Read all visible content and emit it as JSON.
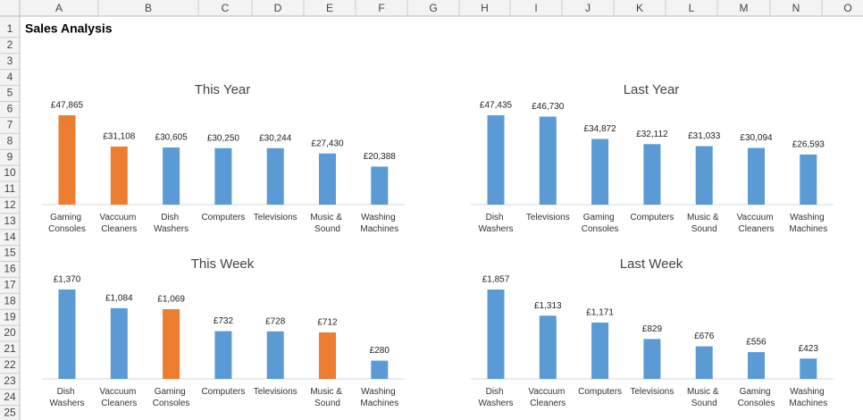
{
  "spreadsheet": {
    "columns": [
      "A",
      "B",
      "C",
      "D",
      "E",
      "F",
      "G",
      "H",
      "I",
      "J",
      "K",
      "L",
      "M",
      "N",
      "O"
    ],
    "rows": [
      1,
      2,
      3,
      4,
      5,
      6,
      7,
      8,
      9,
      10,
      11,
      12,
      13,
      14,
      15,
      16,
      17,
      18,
      19,
      20,
      21,
      22,
      23,
      24,
      25
    ],
    "title": "Sales Analysis"
  },
  "chart_data": [
    {
      "type": "bar",
      "title": "This Year",
      "categories": [
        "Gaming Consoles",
        "Vaccuum Cleaners",
        "Dish Washers",
        "Computers",
        "Televisions",
        "Music & Sound",
        "Washing Machines"
      ],
      "values": [
        47865,
        31108,
        30605,
        30250,
        30244,
        27430,
        20388
      ],
      "value_labels": [
        "£47,865",
        "£31,108",
        "£30,605",
        "£30,250",
        "£30,244",
        "£27,430",
        "£20,388"
      ],
      "colors": [
        "#ed7d31",
        "#ed7d31",
        "#5b9bd5",
        "#5b9bd5",
        "#5b9bd5",
        "#5b9bd5",
        "#5b9bd5"
      ]
    },
    {
      "type": "bar",
      "title": "Last Year",
      "categories": [
        "Dish Washers",
        "Televisions",
        "Gaming Consoles",
        "Computers",
        "Music & Sound",
        "Vaccuum Cleaners",
        "Washing Machines"
      ],
      "values": [
        47435,
        46730,
        34872,
        32112,
        31033,
        30094,
        26593
      ],
      "value_labels": [
        "£47,435",
        "£46,730",
        "£34,872",
        "£32,112",
        "£31,033",
        "£30,094",
        "£26,593"
      ],
      "colors": [
        "#5b9bd5",
        "#5b9bd5",
        "#5b9bd5",
        "#5b9bd5",
        "#5b9bd5",
        "#5b9bd5",
        "#5b9bd5"
      ]
    },
    {
      "type": "bar",
      "title": "This Week",
      "categories": [
        "Dish Washers",
        "Vaccuum Cleaners",
        "Gaming Consoles",
        "Computers",
        "Televisions",
        "Music & Sound",
        "Washing Machines"
      ],
      "values": [
        1370,
        1084,
        1069,
        732,
        728,
        712,
        280
      ],
      "value_labels": [
        "£1,370",
        "£1,084",
        "£1,069",
        "£732",
        "£728",
        "£712",
        "£280"
      ],
      "colors": [
        "#5b9bd5",
        "#5b9bd5",
        "#ed7d31",
        "#5b9bd5",
        "#5b9bd5",
        "#ed7d31",
        "#5b9bd5"
      ]
    },
    {
      "type": "bar",
      "title": "Last Week",
      "categories": [
        "Dish Washers",
        "Vaccuum Cleaners",
        "Computers",
        "Televisions",
        "Music & Sound",
        "Gaming Consoles",
        "Washing Machines"
      ],
      "values": [
        1857,
        1313,
        1171,
        829,
        676,
        556,
        423
      ],
      "value_labels": [
        "£1,857",
        "£1,313",
        "£1,171",
        "£829",
        "£676",
        "£556",
        "£423"
      ],
      "colors": [
        "#5b9bd5",
        "#5b9bd5",
        "#5b9bd5",
        "#5b9bd5",
        "#5b9bd5",
        "#5b9bd5",
        "#5b9bd5"
      ]
    }
  ]
}
